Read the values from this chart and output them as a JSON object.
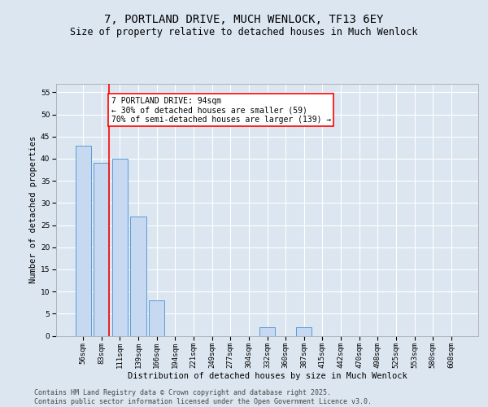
{
  "title_line1": "7, PORTLAND DRIVE, MUCH WENLOCK, TF13 6EY",
  "title_line2": "Size of property relative to detached houses in Much Wenlock",
  "xlabel": "Distribution of detached houses by size in Much Wenlock",
  "ylabel": "Number of detached properties",
  "categories": [
    "56sqm",
    "83sqm",
    "111sqm",
    "139sqm",
    "166sqm",
    "194sqm",
    "221sqm",
    "249sqm",
    "277sqm",
    "304sqm",
    "332sqm",
    "360sqm",
    "387sqm",
    "415sqm",
    "442sqm",
    "470sqm",
    "498sqm",
    "525sqm",
    "553sqm",
    "580sqm",
    "608sqm"
  ],
  "values": [
    43,
    39,
    40,
    27,
    8,
    0,
    0,
    0,
    0,
    0,
    2,
    0,
    2,
    0,
    0,
    0,
    0,
    0,
    0,
    0,
    0
  ],
  "bar_color": "#c6d9f0",
  "bar_edge_color": "#5b9bd5",
  "background_color": "#dce6f1",
  "plot_bg_color": "#dce6f1",
  "red_line_x": 1.42,
  "annotation_text": "7 PORTLAND DRIVE: 94sqm\n← 30% of detached houses are smaller (59)\n70% of semi-detached houses are larger (139) →",
  "annotation_box_color": "white",
  "annotation_box_edge_color": "red",
  "ylim": [
    0,
    57
  ],
  "yticks": [
    0,
    5,
    10,
    15,
    20,
    25,
    30,
    35,
    40,
    45,
    50,
    55
  ],
  "footer_line1": "Contains HM Land Registry data © Crown copyright and database right 2025.",
  "footer_line2": "Contains public sector information licensed under the Open Government Licence v3.0.",
  "title_fontsize": 10,
  "subtitle_fontsize": 8.5,
  "axis_label_fontsize": 7.5,
  "tick_fontsize": 6.5,
  "annotation_fontsize": 7,
  "footer_fontsize": 6
}
